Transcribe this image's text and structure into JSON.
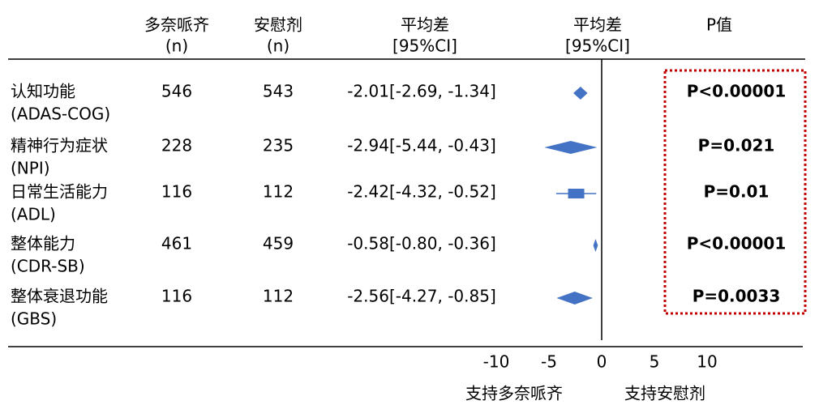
{
  "chart_data": {
    "type": "forest",
    "columns": [
      [
        "多奈哌齐",
        "(n)"
      ],
      [
        "安慰剂",
        "(n)"
      ],
      [
        "平均差",
        "[95%CI]"
      ]
    ],
    "plot_header": [
      "平均差",
      "[95%CI]"
    ],
    "p_header": "P值",
    "categories": [
      [
        "认知功能",
        "(ADAS-COG)"
      ],
      [
        "精神行为症状",
        "(NPI)"
      ],
      [
        "日常生活能力",
        "(ADL)"
      ],
      [
        "整体能力",
        "(CDR-SB)"
      ],
      [
        "整体衰退功能",
        "(GBS)"
      ]
    ],
    "n_drug": [
      546,
      228,
      116,
      461,
      116
    ],
    "n_placebo": [
      543,
      235,
      112,
      459,
      112
    ],
    "values": [
      -2.01,
      -2.94,
      -2.42,
      -0.58,
      -2.56
    ],
    "lower": [
      -2.69,
      -5.44,
      -4.32,
      -0.8,
      -4.27
    ],
    "upper": [
      -1.34,
      -0.43,
      -0.52,
      -0.36,
      -0.85
    ],
    "value_labels": [
      "-2.01[-2.69, -1.34]",
      "-2.94[-5.44, -0.43]",
      "-2.42[-4.32, -0.52]",
      "-0.58[-0.80, -0.36]",
      "-2.56[-4.27, -0.85]"
    ],
    "markers": [
      "diamond",
      "diamond",
      "square",
      "diamond",
      "diamond"
    ],
    "p_values": [
      "P<0.00001",
      "P=0.021",
      "P=0.01",
      "P<0.00001",
      "P=0.0033"
    ],
    "color": "#4472c4",
    "xlim": [
      -10,
      10
    ],
    "xticks": [
      -10,
      -5,
      0,
      5,
      10
    ],
    "x_labels": [
      "支持多奈哌齐",
      "支持安慰剂"
    ]
  }
}
